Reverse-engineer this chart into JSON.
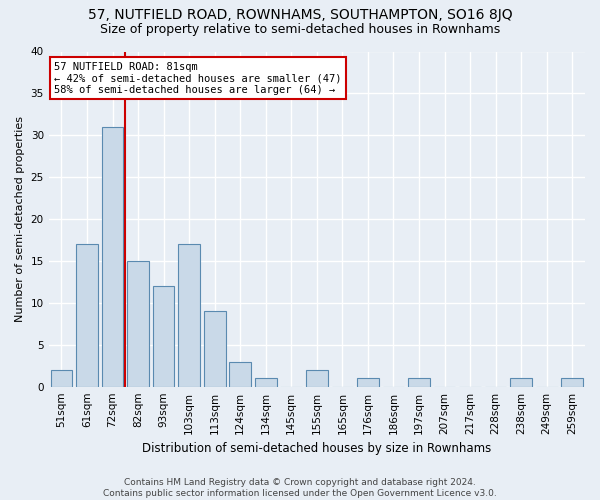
{
  "title": "57, NUTFIELD ROAD, ROWNHAMS, SOUTHAMPTON, SO16 8JQ",
  "subtitle": "Size of property relative to semi-detached houses in Rownhams",
  "xlabel": "Distribution of semi-detached houses by size in Rownhams",
  "ylabel": "Number of semi-detached properties",
  "categories": [
    "51sqm",
    "61sqm",
    "72sqm",
    "82sqm",
    "93sqm",
    "103sqm",
    "113sqm",
    "124sqm",
    "134sqm",
    "145sqm",
    "155sqm",
    "165sqm",
    "176sqm",
    "186sqm",
    "197sqm",
    "207sqm",
    "217sqm",
    "228sqm",
    "238sqm",
    "249sqm",
    "259sqm"
  ],
  "values": [
    2,
    17,
    31,
    15,
    12,
    17,
    9,
    3,
    1,
    0,
    2,
    0,
    1,
    0,
    1,
    0,
    0,
    0,
    1,
    0,
    1
  ],
  "bar_color": "#c9d9e8",
  "bar_edge_color": "#5a8ab0",
  "background_color": "#e8eef5",
  "grid_color": "#ffffff",
  "property_line_index": 3,
  "property_label": "57 NUTFIELD ROAD: 81sqm",
  "annotation_line1": "← 42% of semi-detached houses are smaller (47)",
  "annotation_line2": "58% of semi-detached houses are larger (64) →",
  "annotation_box_color": "#ffffff",
  "annotation_box_edge": "#cc0000",
  "property_line_color": "#cc0000",
  "ylim": [
    0,
    40
  ],
  "footer": "Contains HM Land Registry data © Crown copyright and database right 2024.\nContains public sector information licensed under the Open Government Licence v3.0.",
  "title_fontsize": 10,
  "subtitle_fontsize": 9,
  "ylabel_fontsize": 8,
  "xlabel_fontsize": 8.5,
  "tick_fontsize": 7.5,
  "footer_fontsize": 6.5
}
